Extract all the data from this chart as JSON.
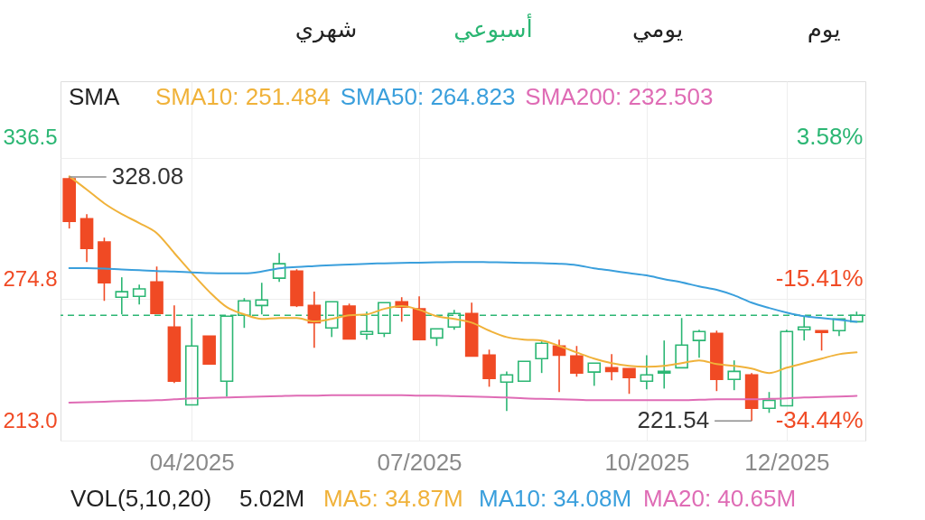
{
  "chart_data": {
    "type": "candlestick",
    "x": [
      "2025-02-17",
      "2025-02-24",
      "2025-03-03",
      "2025-03-10",
      "2025-03-17",
      "2025-03-24",
      "2025-03-31",
      "2025-04-07",
      "2025-04-14",
      "2025-04-21",
      "2025-04-28",
      "2025-05-05",
      "2025-05-12",
      "2025-05-19",
      "2025-05-26",
      "2025-06-02",
      "2025-06-09",
      "2025-06-16",
      "2025-06-23",
      "2025-06-30",
      "2025-07-07",
      "2025-07-14",
      "2025-07-21",
      "2025-07-28",
      "2025-08-04",
      "2025-08-11",
      "2025-08-18",
      "2025-08-25",
      "2025-09-01",
      "2025-09-08",
      "2025-09-15",
      "2025-09-22",
      "2025-09-29",
      "2025-10-06",
      "2025-10-13",
      "2025-10-20",
      "2025-10-27",
      "2025-11-03",
      "2025-11-10",
      "2025-11-17",
      "2025-11-24",
      "2025-12-01",
      "2025-12-08",
      "2025-12-15",
      "2025-12-22",
      "2025-12-29"
    ],
    "ohlc": [
      [
        327.3,
        328.08,
        305.6,
        308.7
      ],
      [
        309.9,
        311.9,
        291.0,
        296.9
      ],
      [
        299.7,
        301.6,
        274.0,
        281.9
      ],
      [
        275.6,
        284.3,
        268.1,
        278.0
      ],
      [
        276.0,
        281.1,
        272.4,
        279.2
      ],
      [
        282.3,
        289.0,
        268.5,
        268.5
      ],
      [
        262.6,
        272.0,
        238.1,
        238.9
      ],
      [
        228.6,
        266.5,
        228.6,
        254.3
      ],
      [
        258.6,
        258.6,
        246.4,
        246.4
      ],
      [
        238.9,
        267.3,
        232.2,
        267.3
      ],
      [
        267.7,
        275.2,
        262.2,
        274.0
      ],
      [
        272.0,
        281.9,
        268.1,
        274.4
      ],
      [
        283.9,
        294.9,
        282.3,
        290.2
      ],
      [
        287.0,
        287.8,
        271.3,
        272.0
      ],
      [
        272.0,
        278.0,
        253.5,
        264.5
      ],
      [
        262.2,
        273.6,
        258.2,
        273.6
      ],
      [
        271.7,
        272.8,
        257.4,
        257.4
      ],
      [
        259.4,
        269.3,
        257.1,
        260.6
      ],
      [
        259.8,
        273.2,
        258.2,
        273.2
      ],
      [
        273.6,
        275.6,
        264.9,
        271.3
      ],
      [
        270.5,
        276.0,
        257.1,
        257.1
      ],
      [
        257.8,
        261.8,
        254.3,
        261.8
      ],
      [
        262.6,
        270.1,
        261.4,
        268.5
      ],
      [
        268.5,
        273.2,
        249.9,
        249.9
      ],
      [
        250.3,
        252.7,
        236.5,
        240.1
      ],
      [
        238.5,
        243.2,
        225.9,
        241.7
      ],
      [
        238.9,
        247.6,
        238.9,
        247.6
      ],
      [
        248.8,
        256.3,
        242.5,
        255.5
      ],
      [
        254.3,
        257.1,
        234.2,
        250.3
      ],
      [
        249.9,
        254.3,
        240.9,
        242.5
      ],
      [
        242.9,
        246.8,
        236.9,
        246.8
      ],
      [
        244.8,
        250.7,
        239.3,
        243.2
      ],
      [
        244.4,
        244.4,
        233.4,
        240.5
      ],
      [
        238.9,
        250.3,
        235.4,
        241.7
      ],
      [
        242.5,
        256.7,
        235.7,
        243.2
      ],
      [
        244.8,
        266.5,
        244.8,
        254.7
      ],
      [
        256.7,
        261.4,
        249.2,
        260.6
      ],
      [
        259.8,
        261.0,
        234.6,
        239.7
      ],
      [
        239.7,
        248.0,
        235.0,
        243.2
      ],
      [
        241.7,
        242.5,
        221.54,
        227.1
      ],
      [
        227.1,
        234.2,
        225.1,
        230.6
      ],
      [
        228.2,
        261.4,
        228.2,
        260.6
      ],
      [
        261.4,
        267.3,
        256.7,
        262.6
      ],
      [
        261.0,
        261.0,
        252.3,
        260.2
      ],
      [
        261.0,
        266.1,
        258.6,
        266.1
      ],
      [
        264.9,
        269.3,
        264.9,
        267.7
      ]
    ],
    "colors": [
      "#f04a24",
      "#f04a24",
      "#f04a24",
      "#2bb673",
      "#2bb673",
      "#f04a24",
      "#f04a24",
      "#2bb673",
      "#f04a24",
      "#2bb673",
      "#2bb673",
      "#2bb673",
      "#2bb673",
      "#f04a24",
      "#f04a24",
      "#2bb673",
      "#f04a24",
      "#2bb673",
      "#2bb673",
      "#f04a24",
      "#f04a24",
      "#2bb673",
      "#2bb673",
      "#f04a24",
      "#f04a24",
      "#2bb673",
      "#2bb673",
      "#2bb673",
      "#f04a24",
      "#f04a24",
      "#2bb673",
      "#f04a24",
      "#f04a24",
      "#2bb673",
      "#2bb673",
      "#2bb673",
      "#2bb673",
      "#f04a24",
      "#2bb673",
      "#f04a24",
      "#2bb673",
      "#2bb673",
      "#2bb673",
      "#f04a24",
      "#2bb673",
      "#2bb673"
    ],
    "series": [
      {
        "type": "line",
        "name": "SMA10: 251.484",
        "color": "#f0b23a",
        "values": [
          328.4,
          322.6,
          316.6,
          311.9,
          308.0,
          303.6,
          294.9,
          286.2,
          278.0,
          271.3,
          268.1,
          266.1,
          266.5,
          266.5,
          265.0,
          266.1,
          267.7,
          268.1,
          270.5,
          271.7,
          270.1,
          267.3,
          266.1,
          264.5,
          261.0,
          258.2,
          257.1,
          256.7,
          254.3,
          251.5,
          248.8,
          246.8,
          245.6,
          245.2,
          245.6,
          246.8,
          248.0,
          246.4,
          245.6,
          244.4,
          242.5,
          244.8,
          246.8,
          248.8,
          250.7,
          251.5
        ]
      },
      {
        "type": "line",
        "name": "SMA50: 264.823",
        "color": "#3a9fdc",
        "values": [
          288.3,
          288.3,
          288.1,
          287.7,
          287.4,
          287.0,
          286.8,
          286.4,
          286.1,
          286.0,
          286.0,
          286.8,
          288.2,
          288.8,
          289.2,
          289.6,
          289.9,
          290.2,
          290.4,
          290.6,
          290.7,
          290.9,
          291.0,
          291.0,
          290.9,
          290.8,
          290.6,
          290.5,
          290.2,
          289.6,
          288.2,
          287.2,
          286.1,
          285.1,
          283.5,
          282.1,
          280.3,
          278.8,
          276.4,
          273.2,
          270.9,
          268.9,
          267.3,
          266.5,
          265.7,
          264.8
        ]
      },
      {
        "type": "line",
        "name": "SMA200: 232.503",
        "color": "#df6cb5",
        "values": [
          229.6,
          229.8,
          230.0,
          230.2,
          230.4,
          230.6,
          231.0,
          231.4,
          231.6,
          231.8,
          232.0,
          232.2,
          232.4,
          232.6,
          232.6,
          232.8,
          232.8,
          232.8,
          232.8,
          232.8,
          232.6,
          232.6,
          232.4,
          232.2,
          232.0,
          231.8,
          231.4,
          231.2,
          231.0,
          230.8,
          230.6,
          230.6,
          230.6,
          230.6,
          230.6,
          230.6,
          230.8,
          231.0,
          231.0,
          231.0,
          231.2,
          231.4,
          231.8,
          232.0,
          232.2,
          232.5
        ]
      }
    ],
    "ref_lines": [
      {
        "axis": "y",
        "value": 267.7,
        "color": "#2bb673",
        "line_style": "dashed"
      }
    ],
    "annotations": [
      "يوم",
      "يومي",
      "أسبوعي",
      "شهري",
      "SMA",
      {
        "text": "328.08",
        "x": "2025-02-17",
        "y": 328.08
      },
      {
        "text": "221.54",
        "x": "2025-11-17",
        "y": 221.54
      },
      "VOL(5,10,20)",
      "5.02M",
      "MA5: 34.87M",
      "MA10: 34.08M",
      "MA20: 40.65M"
    ],
    "xlim": [
      "2025-02-13T12:00",
      "2026-01-01T12:00"
    ],
    "xticks": [
      {
        "value": "2025-04-07",
        "label": "04/2025"
      },
      {
        "value": "2025-07-07",
        "label": "07/2025"
      },
      {
        "value": "2025-10-06",
        "label": "10/2025"
      },
      {
        "value": "2025-12-01",
        "label": "12/2025"
      }
    ],
    "ylim": [
      213.0,
      369.9
    ],
    "yticks": [
      336.5,
      274.8,
      {
        "value": 213.0,
        "label": "213.0"
      }
    ],
    "y2lim": [
      -34.44,
      13.86
    ],
    "y2ticks": [
      {
        "value": 3.58,
        "label": "3.58%"
      },
      {
        "value": -15.41,
        "label": "-15.41%"
      },
      {
        "value": -34.44,
        "label": "-34.44%"
      }
    ],
    "grid": true,
    "legend": "top left"
  }
}
